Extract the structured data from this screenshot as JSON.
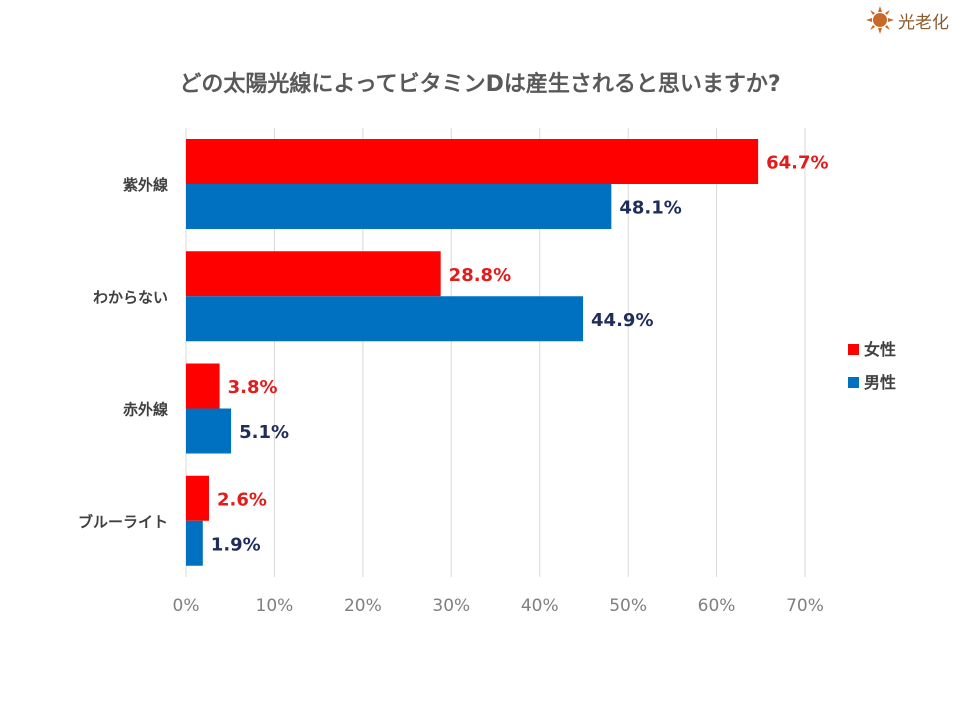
{
  "logo": {
    "text": "光老化",
    "colors": {
      "sun": "#c8692a"
    }
  },
  "chart_data": {
    "type": "bar",
    "orientation": "horizontal",
    "title": "どの太陽光線によってビタミンDは産生されると思いますか?",
    "categories": [
      "紫外線",
      "わからない",
      "赤外線",
      "ブルーライト"
    ],
    "series": [
      {
        "name": "女性",
        "color": "#ff0000",
        "label_color": "#e31b1b",
        "values": [
          64.7,
          28.8,
          3.8,
          2.6
        ]
      },
      {
        "name": "男性",
        "color": "#0070c0",
        "label_color": "#1f2d5a",
        "values": [
          48.1,
          44.9,
          5.1,
          1.9
        ]
      }
    ],
    "xlim": [
      0,
      70
    ],
    "xticks": [
      "0%",
      "10%",
      "20%",
      "30%",
      "40%",
      "50%",
      "60%",
      "70%"
    ],
    "grid": true,
    "legend": "right",
    "xlabel": "",
    "ylabel": ""
  }
}
